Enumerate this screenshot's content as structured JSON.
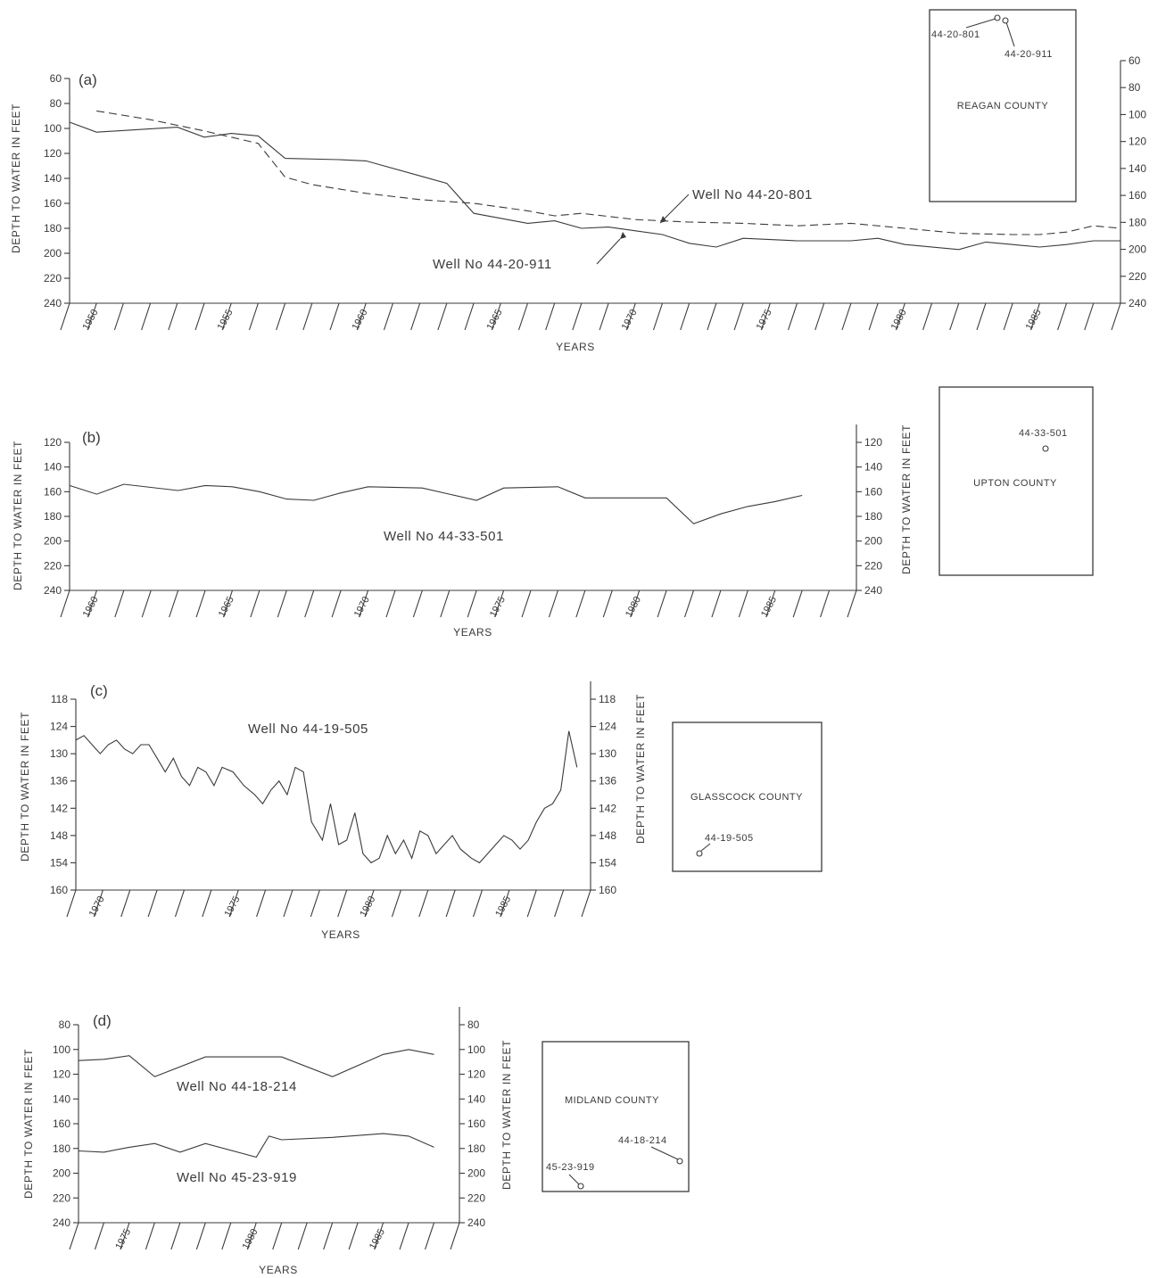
{
  "chart_data": [
    {
      "type": "line",
      "panel_label": "(a)",
      "title": "",
      "xlabel": "YEARS",
      "ylabel": "DEPTH TO WATER IN FEET",
      "right_axis_label": "",
      "y_inverted": true,
      "ylim": [
        60,
        240
      ],
      "yticks": [
        60,
        80,
        100,
        120,
        140,
        160,
        180,
        200,
        220,
        240
      ],
      "right_yticks": [
        60,
        80,
        100,
        120,
        140,
        160,
        180,
        200,
        220,
        240
      ],
      "right_yticks_offset": 20,
      "xlim": [
        1949,
        1988
      ],
      "year_labels": [
        "1950",
        "1955",
        "1960",
        "1965",
        "1970",
        "1975",
        "1980",
        "1985"
      ],
      "series": [
        {
          "name": "Well No 44-20-801",
          "style": "dashed",
          "points": [
            [
              1950,
              86
            ],
            [
              1952,
              93
            ],
            [
              1954,
              102
            ],
            [
              1956,
              112
            ],
            [
              1957,
              139
            ],
            [
              1958,
              145
            ],
            [
              1960,
              152
            ],
            [
              1962,
              157
            ],
            [
              1964,
              160
            ],
            [
              1966,
              166
            ],
            [
              1967,
              170
            ],
            [
              1968,
              168
            ],
            [
              1970,
              173
            ],
            [
              1972,
              175
            ],
            [
              1974,
              176
            ],
            [
              1976,
              178
            ],
            [
              1978,
              176
            ],
            [
              1980,
              180
            ],
            [
              1982,
              184
            ],
            [
              1984,
              185
            ],
            [
              1985,
              185
            ],
            [
              1986,
              183
            ],
            [
              1987,
              178
            ],
            [
              1988,
              180
            ]
          ]
        },
        {
          "name": "Well No 44-20-911",
          "style": "solid",
          "points": [
            [
              1949,
              95
            ],
            [
              1950,
              103
            ],
            [
              1953,
              99
            ],
            [
              1954,
              107
            ],
            [
              1955,
              104
            ],
            [
              1956,
              106
            ],
            [
              1957,
              124
            ],
            [
              1959,
              125
            ],
            [
              1960,
              126
            ],
            [
              1962,
              138
            ],
            [
              1963,
              144
            ],
            [
              1964,
              168
            ],
            [
              1965,
              172
            ],
            [
              1966,
              176
            ],
            [
              1967,
              174
            ],
            [
              1968,
              180
            ],
            [
              1969,
              179
            ],
            [
              1970,
              182
            ],
            [
              1971,
              185
            ],
            [
              1972,
              192
            ],
            [
              1973,
              195
            ],
            [
              1974,
              188
            ],
            [
              1975,
              189
            ],
            [
              1976,
              190
            ],
            [
              1978,
              190
            ],
            [
              1979,
              188
            ],
            [
              1980,
              193
            ],
            [
              1982,
              197
            ],
            [
              1983,
              191
            ],
            [
              1984,
              193
            ],
            [
              1985,
              195
            ],
            [
              1986,
              193
            ],
            [
              1987,
              190
            ],
            [
              1988,
              190
            ]
          ]
        }
      ]
    },
    {
      "type": "line",
      "panel_label": "(b)",
      "title": "",
      "xlabel": "YEARS",
      "ylabel": "DEPTH TO WATER IN FEET",
      "right_axis_label": "DEPTH TO WATER IN FEET",
      "y_inverted": true,
      "ylim": [
        120,
        240
      ],
      "yticks": [
        120,
        140,
        160,
        180,
        200,
        220,
        240
      ],
      "right_yticks": [
        120,
        140,
        160,
        180,
        200,
        220,
        240
      ],
      "right_yticks_offset": 0,
      "xlim": [
        1959,
        1988
      ],
      "year_labels": [
        "1960",
        "1965",
        "1970",
        "1975",
        "1980",
        "1985"
      ],
      "series": [
        {
          "name": "Well No 44-33-501",
          "style": "solid",
          "points": [
            [
              1959,
              155
            ],
            [
              1960,
              162
            ],
            [
              1961,
              154
            ],
            [
              1963,
              159
            ],
            [
              1964,
              155
            ],
            [
              1965,
              156
            ],
            [
              1966,
              160
            ],
            [
              1967,
              166
            ],
            [
              1968,
              167
            ],
            [
              1969,
              161
            ],
            [
              1970,
              156
            ],
            [
              1972,
              157
            ],
            [
              1973,
              162
            ],
            [
              1974,
              167
            ],
            [
              1975,
              157
            ],
            [
              1977,
              156
            ],
            [
              1978,
              165
            ],
            [
              1981,
              165
            ],
            [
              1982,
              186
            ],
            [
              1983,
              178
            ],
            [
              1984,
              172
            ],
            [
              1985,
              168
            ],
            [
              1986,
              163
            ]
          ]
        }
      ]
    },
    {
      "type": "line",
      "panel_label": "(c)",
      "title": "",
      "xlabel": "YEARS",
      "ylabel": "DEPTH TO WATER IN FEET",
      "right_axis_label": "DEPTH TO WATER IN FEET",
      "y_inverted": true,
      "ylim": [
        118,
        160
      ],
      "yticks": [
        118,
        124,
        130,
        136,
        142,
        148,
        154,
        160
      ],
      "right_yticks": [
        118,
        124,
        130,
        136,
        142,
        148,
        154,
        160
      ],
      "right_yticks_offset": 0,
      "xlim": [
        1969,
        1988
      ],
      "year_labels": [
        "1970",
        "1975",
        "1980",
        "1985"
      ],
      "series": [
        {
          "name": "Well No 44-19-505",
          "style": "solid",
          "points": [
            [
              1969,
              127
            ],
            [
              1969.3,
              126
            ],
            [
              1969.6,
              128
            ],
            [
              1969.9,
              130
            ],
            [
              1970.2,
              128
            ],
            [
              1970.5,
              127
            ],
            [
              1970.8,
              129
            ],
            [
              1971.1,
              130
            ],
            [
              1971.4,
              128
            ],
            [
              1971.7,
              128
            ],
            [
              1972,
              131
            ],
            [
              1972.3,
              134
            ],
            [
              1972.6,
              131
            ],
            [
              1972.9,
              135
            ],
            [
              1973.2,
              137
            ],
            [
              1973.5,
              133
            ],
            [
              1973.8,
              134
            ],
            [
              1974.1,
              137
            ],
            [
              1974.4,
              133
            ],
            [
              1974.8,
              134
            ],
            [
              1975.2,
              137
            ],
            [
              1975.6,
              139
            ],
            [
              1975.9,
              141
            ],
            [
              1976.2,
              138
            ],
            [
              1976.5,
              136
            ],
            [
              1976.8,
              139
            ],
            [
              1977.1,
              133
            ],
            [
              1977.4,
              134
            ],
            [
              1977.7,
              145
            ],
            [
              1978.1,
              149
            ],
            [
              1978.4,
              141
            ],
            [
              1978.7,
              150
            ],
            [
              1979.0,
              149
            ],
            [
              1979.3,
              143
            ],
            [
              1979.6,
              152
            ],
            [
              1979.9,
              154
            ],
            [
              1980.2,
              153
            ],
            [
              1980.5,
              148
            ],
            [
              1980.8,
              152
            ],
            [
              1981.1,
              149
            ],
            [
              1981.4,
              153
            ],
            [
              1981.7,
              147
            ],
            [
              1982.0,
              148
            ],
            [
              1982.3,
              152
            ],
            [
              1982.6,
              150
            ],
            [
              1982.9,
              148
            ],
            [
              1983.2,
              151
            ],
            [
              1983.6,
              153
            ],
            [
              1983.9,
              154
            ],
            [
              1984.2,
              152
            ],
            [
              1984.5,
              150
            ],
            [
              1984.8,
              148
            ],
            [
              1985.1,
              149
            ],
            [
              1985.4,
              151
            ],
            [
              1985.7,
              149
            ],
            [
              1986.0,
              145
            ],
            [
              1986.3,
              142
            ],
            [
              1986.6,
              141
            ],
            [
              1986.9,
              138
            ],
            [
              1987.2,
              125
            ],
            [
              1987.5,
              133
            ]
          ]
        }
      ]
    },
    {
      "type": "line",
      "panel_label": "(d)",
      "title": "",
      "xlabel": "YEARS",
      "ylabel": "DEPTH TO WATER IN FEET",
      "right_axis_label": "DEPTH TO WATER IN FEET",
      "y_inverted": true,
      "ylim": [
        80,
        240
      ],
      "yticks": [
        80,
        100,
        120,
        140,
        160,
        180,
        200,
        220,
        240
      ],
      "right_yticks": [
        80,
        100,
        120,
        140,
        160,
        180,
        200,
        220,
        240
      ],
      "right_yticks_offset": 0,
      "xlim": [
        1973,
        1988
      ],
      "year_labels": [
        "1975",
        "1980",
        "1985"
      ],
      "series": [
        {
          "name": "Well No 44-18-214",
          "style": "solid",
          "points": [
            [
              1973,
              109
            ],
            [
              1974,
              108
            ],
            [
              1975,
              105
            ],
            [
              1976,
              122
            ],
            [
              1978,
              106
            ],
            [
              1981,
              106
            ],
            [
              1983,
              122
            ],
            [
              1985,
              104
            ],
            [
              1986,
              100
            ],
            [
              1987,
              104
            ]
          ]
        },
        {
          "name": "Well No 45-23-919",
          "style": "solid",
          "points": [
            [
              1973,
              182
            ],
            [
              1974,
              183
            ],
            [
              1975,
              179
            ],
            [
              1976,
              176
            ],
            [
              1977,
              183
            ],
            [
              1978,
              176
            ],
            [
              1980,
              187
            ],
            [
              1980.5,
              170
            ],
            [
              1981,
              173
            ],
            [
              1983,
              171
            ],
            [
              1985,
              168
            ],
            [
              1986,
              170
            ],
            [
              1987,
              179
            ]
          ]
        }
      ]
    }
  ],
  "maps": [
    {
      "county": "REAGAN COUNTY",
      "wells": [
        "44-20-801",
        "44-20-911"
      ]
    },
    {
      "county": "UPTON COUNTY",
      "wells": [
        "44-33-501"
      ]
    },
    {
      "county": "GLASSCOCK COUNTY",
      "wells": [
        "44-19-505"
      ]
    },
    {
      "county": "MIDLAND COUNTY",
      "wells": [
        "44-18-214",
        "45-23-919"
      ]
    }
  ],
  "colors": {
    "ink": "#3a3a3a",
    "paper": "#ffffff"
  }
}
